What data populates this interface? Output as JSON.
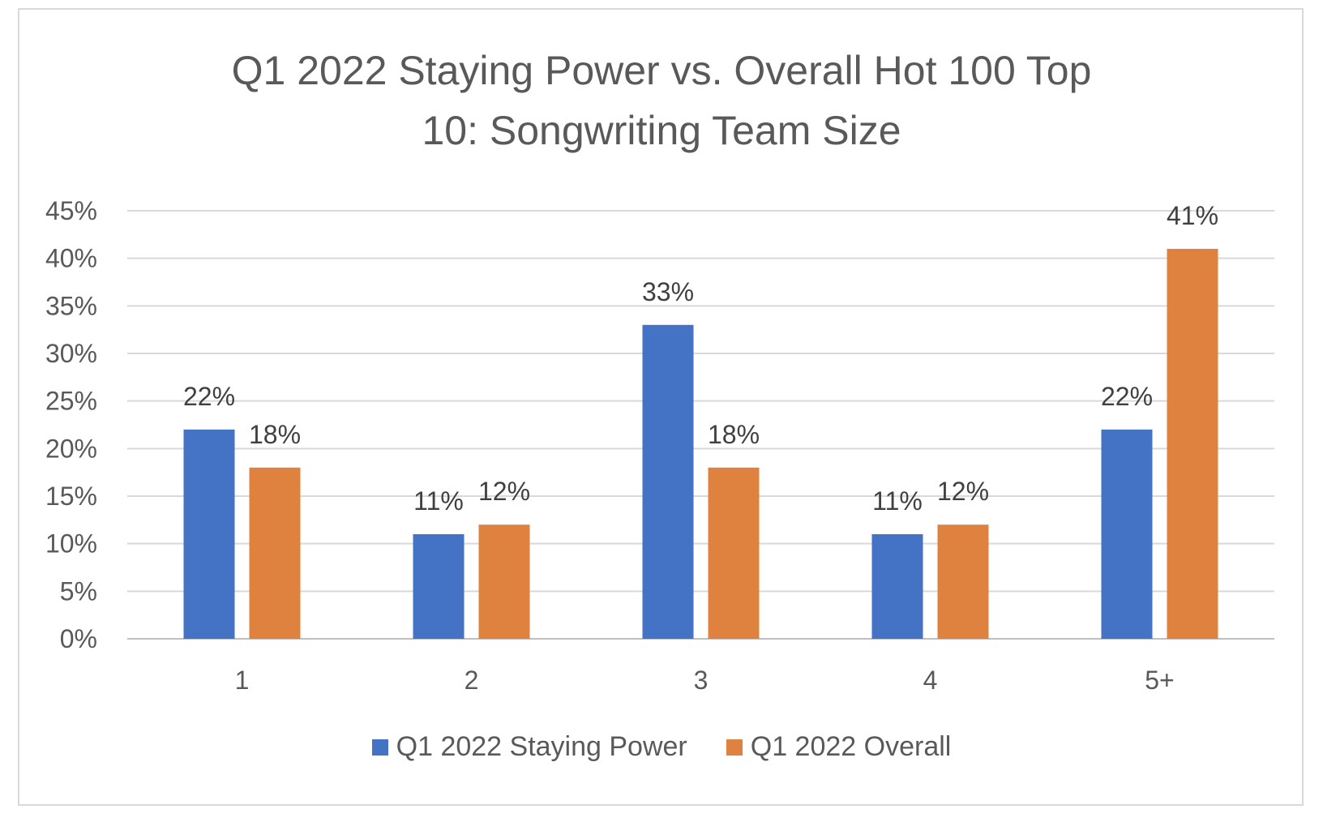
{
  "chart_data": {
    "type": "bar",
    "title_lines": [
      "Q1 2022 Staying Power vs. Overall Hot 100 Top",
      "10: Songwriting Team Size"
    ],
    "categories": [
      "1",
      "2",
      "3",
      "4",
      "5+"
    ],
    "series": [
      {
        "name": "Q1 2022 Staying Power",
        "color": "#4472c4",
        "values": [
          22,
          11,
          33,
          11,
          22
        ]
      },
      {
        "name": "Q1 2022 Overall",
        "color": "#e0823f",
        "values": [
          18,
          12,
          18,
          12,
          41
        ]
      }
    ],
    "ylim": [
      0,
      45
    ],
    "yticks": [
      0,
      5,
      10,
      15,
      20,
      25,
      30,
      35,
      40,
      45
    ],
    "ytick_labels": [
      "0%",
      "5%",
      "10%",
      "15%",
      "20%",
      "25%",
      "30%",
      "35%",
      "40%",
      "45%"
    ],
    "data_labels": [
      [
        "22%",
        "11%",
        "33%",
        "11%",
        "22%"
      ],
      [
        "18%",
        "12%",
        "18%",
        "12%",
        "41%"
      ]
    ],
    "grid": true,
    "legend_position": "bottom"
  }
}
